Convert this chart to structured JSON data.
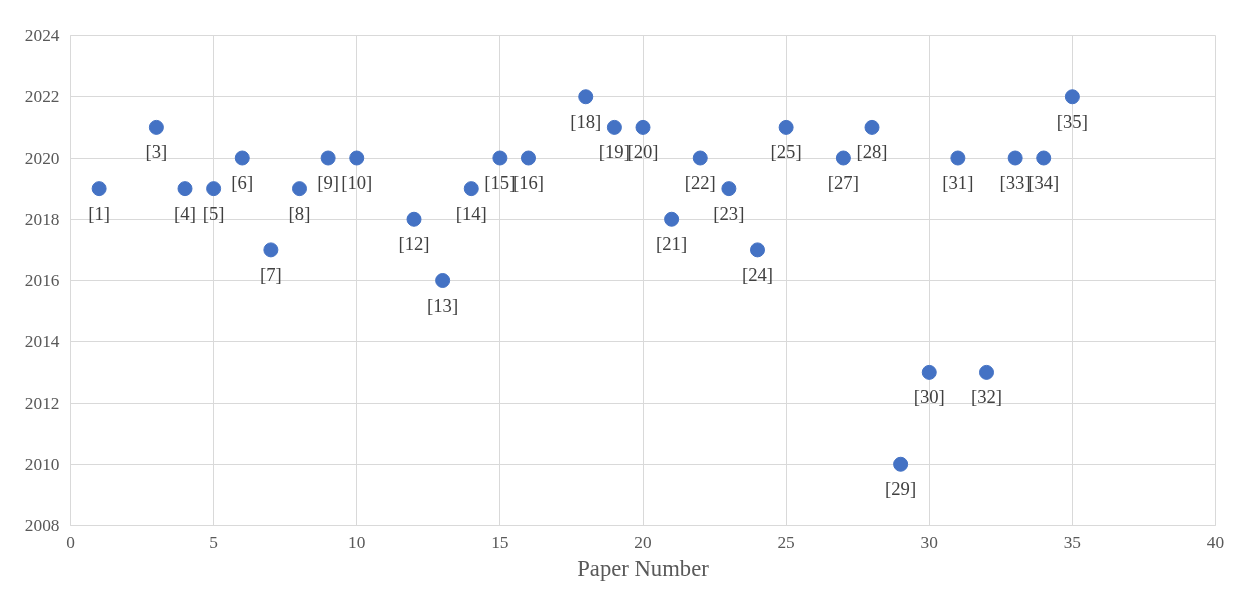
{
  "chart_data": {
    "type": "scatter",
    "xlabel": "Paper Number",
    "x": [
      1,
      3,
      4,
      5,
      6,
      7,
      8,
      9,
      10,
      12,
      13,
      14,
      15,
      16,
      18,
      19,
      20,
      21,
      22,
      23,
      24,
      25,
      27,
      28,
      29,
      30,
      31,
      32,
      33,
      34,
      35
    ],
    "series": [
      {
        "color": "#4472c4",
        "values": [
          2019,
          2021,
          2019,
          2019,
          2020,
          2017,
          2019,
          2020,
          2020,
          2018,
          2016,
          2019,
          2020,
          2020,
          2022,
          2021,
          2021,
          2018,
          2020,
          2019,
          2017,
          2021,
          2020,
          2021,
          2010,
          2013,
          2020,
          2013,
          2020,
          2020,
          2022
        ]
      }
    ],
    "annotations": [
      {
        "text": "[1]",
        "x": 1,
        "y": 2019
      },
      {
        "text": "[3]",
        "x": 3,
        "y": 2021
      },
      {
        "text": "[4]",
        "x": 4,
        "y": 2019
      },
      {
        "text": "[5]",
        "x": 5,
        "y": 2019
      },
      {
        "text": "[6]",
        "x": 6,
        "y": 2020
      },
      {
        "text": "[7]",
        "x": 7,
        "y": 2017
      },
      {
        "text": "[8]",
        "x": 8,
        "y": 2019
      },
      {
        "text": "[9]",
        "x": 9,
        "y": 2020
      },
      {
        "text": "[10]",
        "x": 10,
        "y": 2020
      },
      {
        "text": "[12]",
        "x": 12,
        "y": 2018
      },
      {
        "text": "[13]",
        "x": 13,
        "y": 2016
      },
      {
        "text": "[14]",
        "x": 14,
        "y": 2019
      },
      {
        "text": "[15]",
        "x": 15,
        "y": 2020
      },
      {
        "text": "[16]",
        "x": 16,
        "y": 2020
      },
      {
        "text": "[18]",
        "x": 18,
        "y": 2022
      },
      {
        "text": "[19]",
        "x": 19,
        "y": 2021
      },
      {
        "text": "[20]",
        "x": 20,
        "y": 2021
      },
      {
        "text": "[21]",
        "x": 21,
        "y": 2018
      },
      {
        "text": "[22]",
        "x": 22,
        "y": 2020
      },
      {
        "text": "[23]",
        "x": 23,
        "y": 2019
      },
      {
        "text": "[24]",
        "x": 24,
        "y": 2017
      },
      {
        "text": "[25]",
        "x": 25,
        "y": 2021
      },
      {
        "text": "[27]",
        "x": 27,
        "y": 2020
      },
      {
        "text": "[28]",
        "x": 28,
        "y": 2021
      },
      {
        "text": "[29]",
        "x": 29,
        "y": 2010
      },
      {
        "text": "[30]",
        "x": 30,
        "y": 2013
      },
      {
        "text": "[31]",
        "x": 31,
        "y": 2020
      },
      {
        "text": "[32]",
        "x": 32,
        "y": 2013
      },
      {
        "text": "[33]",
        "x": 33,
        "y": 2020
      },
      {
        "text": "[34]",
        "x": 34,
        "y": 2020
      },
      {
        "text": "[35]",
        "x": 35,
        "y": 2022
      }
    ],
    "xlim": [
      0,
      40
    ],
    "xticks": [
      0,
      5,
      10,
      15,
      20,
      25,
      30,
      35,
      40
    ],
    "ylim": [
      2008,
      2024
    ],
    "yticks": [
      2008,
      2010,
      2012,
      2014,
      2016,
      2018,
      2020,
      2022,
      2024
    ],
    "grid": true,
    "marker": "circle"
  }
}
